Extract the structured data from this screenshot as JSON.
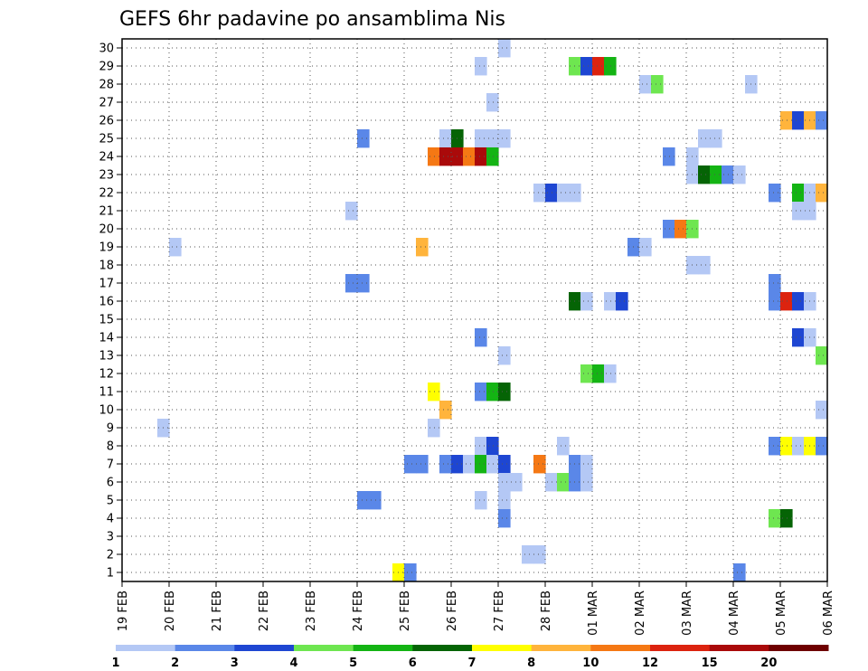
{
  "chart_data": {
    "type": "heatmap",
    "title": "GEFS 6hr padavine po ansamblima Nis",
    "xlabel": "",
    "ylabel": "",
    "x_tick_labels": [
      "19 FEB",
      "20 FEB",
      "21 FEB",
      "22 FEB",
      "23 FEB",
      "24 FEB",
      "25 FEB",
      "26 FEB",
      "27 FEB",
      "28 FEB",
      "01 MAR",
      "02 MAR",
      "03 MAR",
      "04 MAR",
      "05 MAR",
      "06 MAR"
    ],
    "x_range_days": [
      0,
      15
    ],
    "y_tick_labels": [
      "1",
      "2",
      "3",
      "4",
      "5",
      "6",
      "7",
      "8",
      "9",
      "10",
      "11",
      "12",
      "13",
      "14",
      "15",
      "16",
      "17",
      "18",
      "19",
      "20",
      "21",
      "22",
      "23",
      "24",
      "25",
      "26",
      "27",
      "28",
      "29",
      "30"
    ],
    "y_range": [
      0.5,
      30.5
    ],
    "grid": true,
    "colorbar": {
      "position": "bottom",
      "labels": [
        "1",
        "2",
        "3",
        "4",
        "5",
        "6",
        "7",
        "8",
        "10",
        "12",
        "15",
        "20"
      ],
      "colors": [
        "#b4c8f5",
        "#5a87e8",
        "#1e46d2",
        "#6ee650",
        "#14b414",
        "#056405",
        "#ffff00",
        "#ffb43c",
        "#f57814",
        "#dc230f",
        "#aa0a0a",
        "#6e0000"
      ]
    },
    "cell_width_days": 0.25,
    "cells": [
      [
        8,
        30,
        0
      ],
      [
        7.5,
        29,
        0
      ],
      [
        9.5,
        29,
        3
      ],
      [
        9.75,
        29,
        2
      ],
      [
        10,
        29,
        9
      ],
      [
        10.25,
        29,
        4
      ],
      [
        11,
        28,
        0
      ],
      [
        11.25,
        28,
        3
      ],
      [
        13.25,
        28,
        0
      ],
      [
        7.75,
        27,
        0
      ],
      [
        14,
        26,
        7
      ],
      [
        14.25,
        26,
        2
      ],
      [
        14.5,
        26,
        7
      ],
      [
        14.75,
        26,
        1
      ],
      [
        5,
        25,
        1
      ],
      [
        6.75,
        25,
        0
      ],
      [
        7,
        25,
        5
      ],
      [
        7.5,
        25,
        0
      ],
      [
        7.75,
        25,
        0
      ],
      [
        8,
        25,
        0
      ],
      [
        12.25,
        25,
        0
      ],
      [
        12.5,
        25,
        0
      ],
      [
        6.5,
        24,
        8
      ],
      [
        6.75,
        24,
        10
      ],
      [
        7,
        24,
        10
      ],
      [
        7.25,
        24,
        8
      ],
      [
        7.5,
        24,
        10
      ],
      [
        7.75,
        24,
        4
      ],
      [
        11.5,
        24,
        1
      ],
      [
        12,
        24,
        0
      ],
      [
        12,
        23,
        0
      ],
      [
        12.25,
        23,
        5
      ],
      [
        12.5,
        23,
        4
      ],
      [
        12.75,
        23,
        1
      ],
      [
        13,
        23,
        0
      ],
      [
        8.75,
        22,
        0
      ],
      [
        9,
        22,
        2
      ],
      [
        9.25,
        22,
        0
      ],
      [
        9.5,
        22,
        0
      ],
      [
        13.75,
        22,
        1
      ],
      [
        14.25,
        22,
        4
      ],
      [
        14.5,
        22,
        0
      ],
      [
        14.75,
        22,
        7
      ],
      [
        4.75,
        21,
        0
      ],
      [
        14.25,
        21,
        0
      ],
      [
        14.5,
        21,
        0
      ],
      [
        11.5,
        20,
        1
      ],
      [
        11.75,
        20,
        8
      ],
      [
        12,
        20,
        3
      ],
      [
        1,
        19,
        0
      ],
      [
        6.25,
        19,
        7
      ],
      [
        10.75,
        19,
        1
      ],
      [
        11,
        19,
        0
      ],
      [
        12,
        18,
        0
      ],
      [
        12.25,
        18,
        0
      ],
      [
        4.75,
        17,
        1
      ],
      [
        5,
        17,
        1
      ],
      [
        13.75,
        17,
        1
      ],
      [
        9.5,
        16,
        5
      ],
      [
        9.75,
        16,
        0
      ],
      [
        10.25,
        16,
        0
      ],
      [
        10.5,
        16,
        2
      ],
      [
        13.75,
        16,
        1
      ],
      [
        14,
        16,
        9
      ],
      [
        14.25,
        16,
        2
      ],
      [
        14.5,
        16,
        0
      ],
      [
        14.25,
        14,
        2
      ],
      [
        14.5,
        14,
        0
      ],
      [
        7.5,
        14,
        1
      ],
      [
        8,
        13,
        0
      ],
      [
        14.75,
        13,
        3
      ],
      [
        9.75,
        12,
        3
      ],
      [
        10,
        12,
        4
      ],
      [
        10.25,
        12,
        0
      ],
      [
        6.5,
        11,
        6
      ],
      [
        7.5,
        11,
        1
      ],
      [
        7.75,
        11,
        4
      ],
      [
        8,
        11,
        5
      ],
      [
        6.75,
        10,
        7
      ],
      [
        14.75,
        10,
        0
      ],
      [
        0.75,
        9,
        0
      ],
      [
        6.5,
        9,
        0
      ],
      [
        7.5,
        8,
        0
      ],
      [
        7.75,
        8,
        2
      ],
      [
        9.25,
        8,
        0
      ],
      [
        13.75,
        8,
        1
      ],
      [
        14,
        8,
        6
      ],
      [
        14.25,
        8,
        0
      ],
      [
        14.5,
        8,
        6
      ],
      [
        14.75,
        8,
        1
      ],
      [
        6,
        7,
        1
      ],
      [
        6.25,
        7,
        1
      ],
      [
        6.75,
        7,
        1
      ],
      [
        7,
        7,
        2
      ],
      [
        7.25,
        7,
        0
      ],
      [
        7.5,
        7,
        4
      ],
      [
        7.75,
        7,
        0
      ],
      [
        8,
        7,
        2
      ],
      [
        8.75,
        7,
        8
      ],
      [
        9.5,
        7,
        1
      ],
      [
        9.75,
        7,
        0
      ],
      [
        8,
        6,
        0
      ],
      [
        8.25,
        6,
        0
      ],
      [
        9,
        6,
        0
      ],
      [
        9.25,
        6,
        3
      ],
      [
        9.5,
        6,
        1
      ],
      [
        9.75,
        6,
        0
      ],
      [
        5,
        5,
        1
      ],
      [
        5.25,
        5,
        1
      ],
      [
        7.5,
        5,
        0
      ],
      [
        8,
        5,
        0
      ],
      [
        8,
        4,
        1
      ],
      [
        13.75,
        4,
        3
      ],
      [
        14,
        4,
        5
      ],
      [
        8.5,
        2,
        0
      ],
      [
        8.75,
        2,
        0
      ],
      [
        5.75,
        1,
        6
      ],
      [
        6,
        1,
        1
      ],
      [
        13,
        1,
        1
      ]
    ]
  }
}
